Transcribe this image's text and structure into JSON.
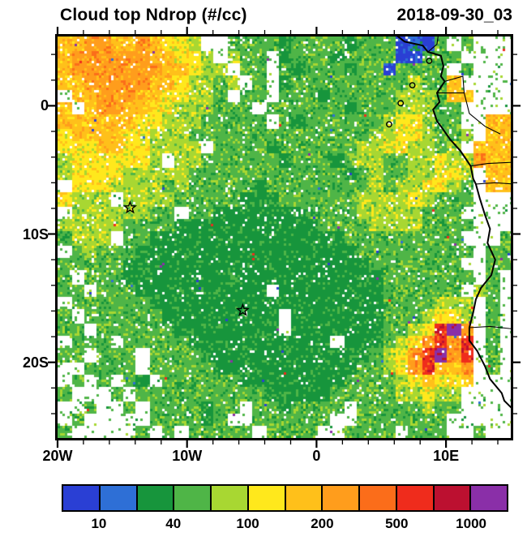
{
  "header": {
    "title": "Cloud top Ndrop (#/cc)",
    "timestamp": "2018-09-30_03"
  },
  "chart_data": {
    "type": "heatmap",
    "title": "Cloud top Ndrop (#/cc)",
    "time_label": "2018-09-30_03",
    "units": "#/cc",
    "x_axis": {
      "range_deg_lon": [
        -20,
        15
      ],
      "minor_tick_step": 2,
      "ticks": [
        {
          "value": -20,
          "label": "20W"
        },
        {
          "value": -10,
          "label": "10W"
        },
        {
          "value": 0,
          "label": "0"
        },
        {
          "value": 10,
          "label": "10E"
        }
      ]
    },
    "y_axis": {
      "range_deg_lat": [
        5.4,
        -25.9
      ],
      "minor_tick_step": 2,
      "ticks": [
        {
          "value": 0,
          "label": "0"
        },
        {
          "value": -10,
          "label": "10S"
        },
        {
          "value": -20,
          "label": "20S"
        }
      ]
    },
    "colorbar": {
      "cell_count": 12,
      "colors": [
        "#2a3fd4",
        "#2e6fd6",
        "#17953c",
        "#4fb547",
        "#a8d732",
        "#ffe81c",
        "#ffc01a",
        "#ff9d1c",
        "#fb6d1a",
        "#ef2c1c",
        "#bc1030",
        "#8a2fa8"
      ],
      "tick_labels": [
        "10",
        "40",
        "100",
        "200",
        "500",
        "1000"
      ],
      "tick_cell_boundaries": [
        1,
        3,
        5,
        7,
        9,
        11
      ]
    },
    "no_data_color": "#ffffff",
    "markers": [
      {
        "name": "ascension-island-star",
        "lon": -14.4,
        "lat": -7.95
      },
      {
        "name": "st-helena-star",
        "lon": -5.7,
        "lat": -15.95
      }
    ],
    "islands": [
      {
        "name": "bioko",
        "lon": 8.7,
        "lat": 3.5
      },
      {
        "name": "principe",
        "lon": 7.4,
        "lat": 1.6
      },
      {
        "name": "sao-tome",
        "lon": 6.5,
        "lat": 0.2
      },
      {
        "name": "annobon",
        "lon": 5.6,
        "lat": -1.45
      }
    ],
    "coastline": [
      [
        6.1,
        5.55
      ],
      [
        6.8,
        5.0
      ],
      [
        8.2,
        4.7
      ],
      [
        8.6,
        4.2
      ],
      [
        9.6,
        3.9
      ],
      [
        9.8,
        3.1
      ],
      [
        9.6,
        2.3
      ],
      [
        9.9,
        1.9
      ],
      [
        9.3,
        1.0
      ],
      [
        9.5,
        0.3
      ],
      [
        9.0,
        -0.3
      ],
      [
        9.3,
        -1.2
      ],
      [
        9.6,
        -1.6
      ],
      [
        10.3,
        -2.6
      ],
      [
        11.1,
        -3.5
      ],
      [
        11.9,
        -4.7
      ],
      [
        12.1,
        -5.7
      ],
      [
        12.3,
        -6.1
      ],
      [
        12.6,
        -7.2
      ],
      [
        13.0,
        -8.5
      ],
      [
        13.4,
        -9.6
      ],
      [
        13.2,
        -10.7
      ],
      [
        13.8,
        -12.0
      ],
      [
        13.5,
        -13.2
      ],
      [
        12.7,
        -14.2
      ],
      [
        12.3,
        -15.1
      ],
      [
        12.1,
        -16.1
      ],
      [
        11.8,
        -17.3
      ],
      [
        11.8,
        -18.3
      ],
      [
        12.4,
        -19.1
      ],
      [
        13.0,
        -20.3
      ],
      [
        13.4,
        -21.3
      ],
      [
        14.3,
        -22.4
      ],
      [
        14.5,
        -23.0
      ],
      [
        15.2,
        -23.7
      ]
    ],
    "borders": [
      [
        [
          8.6,
          4.2
        ],
        [
          9.3,
          4.8
        ],
        [
          9.4,
          5.55
        ]
      ],
      [
        [
          9.9,
          1.9
        ],
        [
          11.3,
          2.3
        ],
        [
          11.4,
          1.0
        ],
        [
          9.3,
          1.0
        ]
      ],
      [
        [
          11.4,
          1.0
        ],
        [
          11.8,
          -0.6
        ],
        [
          13.0,
          -1.6
        ],
        [
          14.2,
          -2.2
        ]
      ],
      [
        [
          11.9,
          -4.7
        ],
        [
          13.2,
          -4.5
        ],
        [
          15.2,
          -4.4
        ]
      ],
      [
        [
          12.3,
          -6.1
        ],
        [
          13.8,
          -6.0
        ],
        [
          15.2,
          -6.1
        ]
      ],
      [
        [
          11.8,
          -17.3
        ],
        [
          13.4,
          -17.2
        ],
        [
          15.2,
          -17.4
        ]
      ]
    ],
    "grid": {
      "cols": 35,
      "rows": 31,
      "char_legend": {
        ".": "no cloud / white",
        "0-9ab": "colorbar cell index 0-11"
      },
      "noise_seed": 20180930,
      "cells": [
        [
          "66776",
          "67655",
          "4..33",
          "33233",
          "33233",
          "30103",
          ".3..."
        ],
        [
          "67777",
          "77665",
          "54.43",
          "3.233",
          "32333",
          "30033",
          "3...."
        ],
        [
          "67777",
          "77766",
          "544.3",
          "3.323",
          "33233",
          "03333",
          ".3..."
        ],
        [
          "66777",
          "77665",
          "4434.",
          "3.233",
          "33333",
          "33433",
          "6...."
        ],
        [
          ".6677",
          "76655",
          "443.3",
          "3.333",
          "23333",
          "34443",
          "66..."
        ],
        [
          "6.677",
          "66554",
          "44333",
          ".3333",
          "33233",
          "34443",
          "3...."
        ],
        [
          "66666",
          "65544",
          "43333",
          "3.323",
          "33333",
          "45543",
          "3..66"
        ],
        [
          "56666",
          "55444",
          "33333",
          "33333",
          "33334",
          "45543",
          "34.66"
        ],
        [
          "55566",
          "55444",
          "4.333",
          "32333",
          "33344",
          "55443",
          "4.666"
        ],
        [
          "45555",
          "554.4",
          "43333",
          "33233",
          "32344",
          "33445",
          "44766"
        ],
        [
          "45555",
          "44444",
          "33333",
          "33333",
          "33234",
          "33445",
          "54.66"
        ],
        [
          ".5554",
          "44434",
          "33333",
          "23333",
          "33334",
          "34455",
          "43.66"
        ],
        [
          "5444.",
          "44443",
          "33332",
          "22333",
          "33344",
          "44543",
          "33..."
        ],
        [
          ".4444",
          "4433.",
          "33222",
          "22223",
          "33344",
          "44433",
          "3...."
        ],
        [
          "44444",
          "33332",
          "22222",
          "22222",
          "33334",
          "44433",
          "33..."
        ],
        [
          "3444.",
          "33222",
          "22222",
          "22222",
          "22333",
          "33333",
          "3...3"
        ],
        [
          ".3433",
          "32222",
          "22222",
          "22222",
          "22233",
          "33333",
          "33.33"
        ],
        [
          "33333",
          "22222",
          "22222",
          "22222",
          "22223",
          "33333",
          "3..33"
        ],
        [
          "3.333",
          "22222",
          "22222",
          "22222",
          "22222",
          "33333",
          "33.3."
        ],
        [
          "33.33",
          "32222",
          "22222",
          "2.222",
          "22222",
          "33333",
          "3.43."
        ],
        [
          ".3333",
          "33222",
          "22222",
          "22222",
          "22222",
          "33334",
          "44.3."
        ],
        [
          "3.333",
          "33322",
          "22222",
          "22.22",
          "22222",
          "33345",
          "54.3."
        ],
        [
          "33.33",
          "33332",
          "22222",
          "22.22",
          "22222",
          "33459",
          "b7.3."
        ],
        [
          ".333.",
          "33333",
          "22222",
          "22222",
          "2.222",
          "34579",
          "79.3."
        ],
        [
          "33.33",
          "3.333",
          "32222",
          "22222",
          "22223",
          "4579b",
          "79.3."
        ],
        [
          "..333",
          "3.333",
          "33222",
          "22222",
          "22233",
          "45796",
          "67.3."
        ],
        [
          ".3.3.",
          "32.33",
          "33332",
          "22222",
          "22333",
          "34565",
          "56..."
        ],
        [
          "3...3",
          ".3333",
          "33333",
          "32222",
          "23333",
          "34454",
          "4...."
        ],
        [
          "..3..",
          "3.333",
          "3233.",
          "33233",
          "33.33",
          "33343",
          "3...."
        ],
        [
          ".3...",
          "..333",
          "323..",
          "33333",
          "3..33",
          "33333",
          "....."
        ],
        [
          "3....",
          ".3.3.",
          "33333",
          ".3333",
          "..333",
          "3.333",
          "..3.."
        ]
      ]
    }
  }
}
